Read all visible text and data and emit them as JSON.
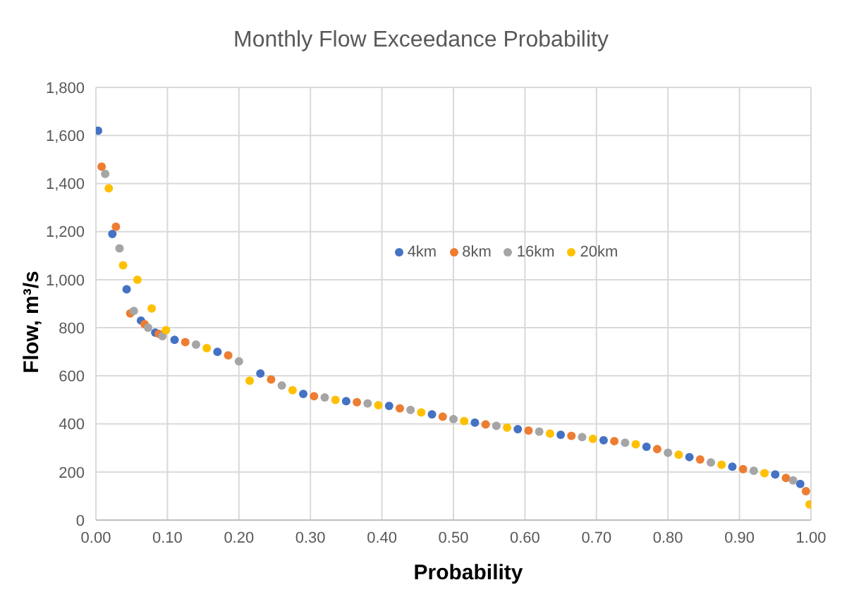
{
  "chart_data": {
    "type": "scatter",
    "title": "Monthly Flow Exceedance Probability",
    "xlabel": "Probability",
    "ylabel": "Flow, m³/s",
    "xlim": [
      0,
      1
    ],
    "xticks": [
      {
        "value": 0,
        "label": "0.00"
      },
      {
        "value": 0.1,
        "label": "0.10"
      },
      {
        "value": 0.2,
        "label": "0.20"
      },
      {
        "value": 0.3,
        "label": "0.30"
      },
      {
        "value": 0.4,
        "label": "0.40"
      },
      {
        "value": 0.5,
        "label": "0.50"
      },
      {
        "value": 0.6,
        "label": "0.60"
      },
      {
        "value": 0.7,
        "label": "0.70"
      },
      {
        "value": 0.8,
        "label": "0.80"
      },
      {
        "value": 0.9,
        "label": "0.90"
      },
      {
        "value": 1,
        "label": "1.00"
      }
    ],
    "ylim": [
      0,
      1800
    ],
    "yticks": [
      {
        "value": 0,
        "label": "0"
      },
      {
        "value": 200,
        "label": "200"
      },
      {
        "value": 400,
        "label": "400"
      },
      {
        "value": 600,
        "label": "600"
      },
      {
        "value": 800,
        "label": "800"
      },
      {
        "value": 1000,
        "label": "1,000"
      },
      {
        "value": 1200,
        "label": "1,200"
      },
      {
        "value": 1400,
        "label": "1,400"
      },
      {
        "value": 1600,
        "label": "1,600"
      },
      {
        "value": 1800,
        "label": "1,800"
      }
    ],
    "grid": true,
    "legend": "top",
    "marker": "circle",
    "series": [
      {
        "name": "4km",
        "color": "#4472c4",
        "x": [
          0.003,
          0.023,
          0.043,
          0.063,
          0.083,
          0.11,
          0.17,
          0.23,
          0.29,
          0.35,
          0.41,
          0.47,
          0.53,
          0.59,
          0.65,
          0.71,
          0.77,
          0.83,
          0.89,
          0.95,
          0.985
        ],
        "values": [
          1620,
          1190,
          960,
          830,
          780,
          750,
          700,
          610,
          525,
          495,
          475,
          440,
          405,
          378,
          355,
          332,
          305,
          262,
          222,
          190,
          150
        ]
      },
      {
        "name": "8km",
        "color": "#ed7d31",
        "x": [
          0.008,
          0.028,
          0.048,
          0.068,
          0.088,
          0.125,
          0.185,
          0.245,
          0.305,
          0.365,
          0.425,
          0.485,
          0.545,
          0.605,
          0.665,
          0.725,
          0.785,
          0.845,
          0.905,
          0.965,
          0.993
        ],
        "values": [
          1470,
          1220,
          860,
          815,
          775,
          740,
          685,
          585,
          515,
          490,
          465,
          430,
          398,
          372,
          350,
          328,
          295,
          252,
          212,
          175,
          120
        ]
      },
      {
        "name": "16km",
        "color": "#a5a5a5",
        "x": [
          0.013,
          0.033,
          0.053,
          0.073,
          0.093,
          0.14,
          0.2,
          0.26,
          0.32,
          0.38,
          0.44,
          0.5,
          0.56,
          0.62,
          0.68,
          0.74,
          0.8,
          0.86,
          0.92,
          0.975
        ],
        "values": [
          1440,
          1130,
          870,
          800,
          765,
          730,
          660,
          560,
          510,
          485,
          458,
          420,
          392,
          368,
          345,
          322,
          280,
          240,
          205,
          165
        ]
      },
      {
        "name": "20km",
        "color": "#ffc000",
        "x": [
          0.018,
          0.038,
          0.058,
          0.078,
          0.098,
          0.155,
          0.215,
          0.275,
          0.335,
          0.395,
          0.455,
          0.515,
          0.575,
          0.635,
          0.695,
          0.755,
          0.815,
          0.875,
          0.935,
          0.998
        ],
        "values": [
          1380,
          1060,
          1000,
          880,
          790,
          715,
          580,
          540,
          500,
          478,
          448,
          412,
          385,
          360,
          338,
          315,
          272,
          230,
          195,
          65
        ]
      }
    ]
  }
}
